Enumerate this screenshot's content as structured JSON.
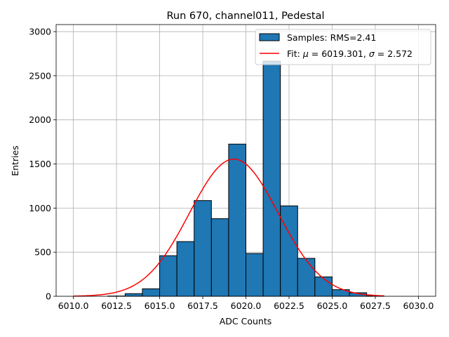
{
  "chart_data": {
    "type": "bar",
    "title": "Run 670, channel011, Pedestal",
    "xlabel": "ADC Counts",
    "ylabel": "Entries",
    "xlim": [
      6009.0,
      6031.0
    ],
    "ylim": [
      0,
      3080
    ],
    "grid": true,
    "legend_position": "top-right",
    "x_ticks": [
      6010.0,
      6012.5,
      6015.0,
      6017.5,
      6020.0,
      6022.5,
      6025.0,
      6027.5,
      6030.0
    ],
    "x_tick_labels": [
      "6010.0",
      "6012.5",
      "6015.0",
      "6017.5",
      "6020.0",
      "6022.5",
      "6025.0",
      "6027.5",
      "6030.0"
    ],
    "y_ticks": [
      0,
      500,
      1000,
      1500,
      2000,
      2500,
      3000
    ],
    "y_tick_labels": [
      "0",
      "500",
      "1000",
      "1500",
      "2000",
      "2500",
      "3000"
    ],
    "histogram": {
      "name": "Samples: RMS=2.41",
      "bin_edges": [
        6010,
        6011,
        6012,
        6013,
        6014,
        6015,
        6016,
        6017,
        6018,
        6019,
        6020,
        6021,
        6022,
        6023,
        6024,
        6025,
        6026,
        6027,
        6028,
        6029,
        6030
      ],
      "counts": [
        0,
        0,
        3,
        30,
        85,
        460,
        620,
        1085,
        880,
        1725,
        485,
        2665,
        1025,
        430,
        220,
        75,
        40,
        5,
        0,
        0
      ],
      "color": "#1f77b4",
      "edge_color": "#000000"
    },
    "fit": {
      "name_prefix": "Fit: ",
      "mu_label": "μ",
      "mu_value": "6019.301",
      "sigma_label": "σ",
      "sigma_value": "2.572",
      "mu": 6019.301,
      "sigma": 2.572,
      "amplitude": 1555,
      "x_range": [
        6010,
        6028
      ],
      "color": "#ff0000"
    }
  }
}
